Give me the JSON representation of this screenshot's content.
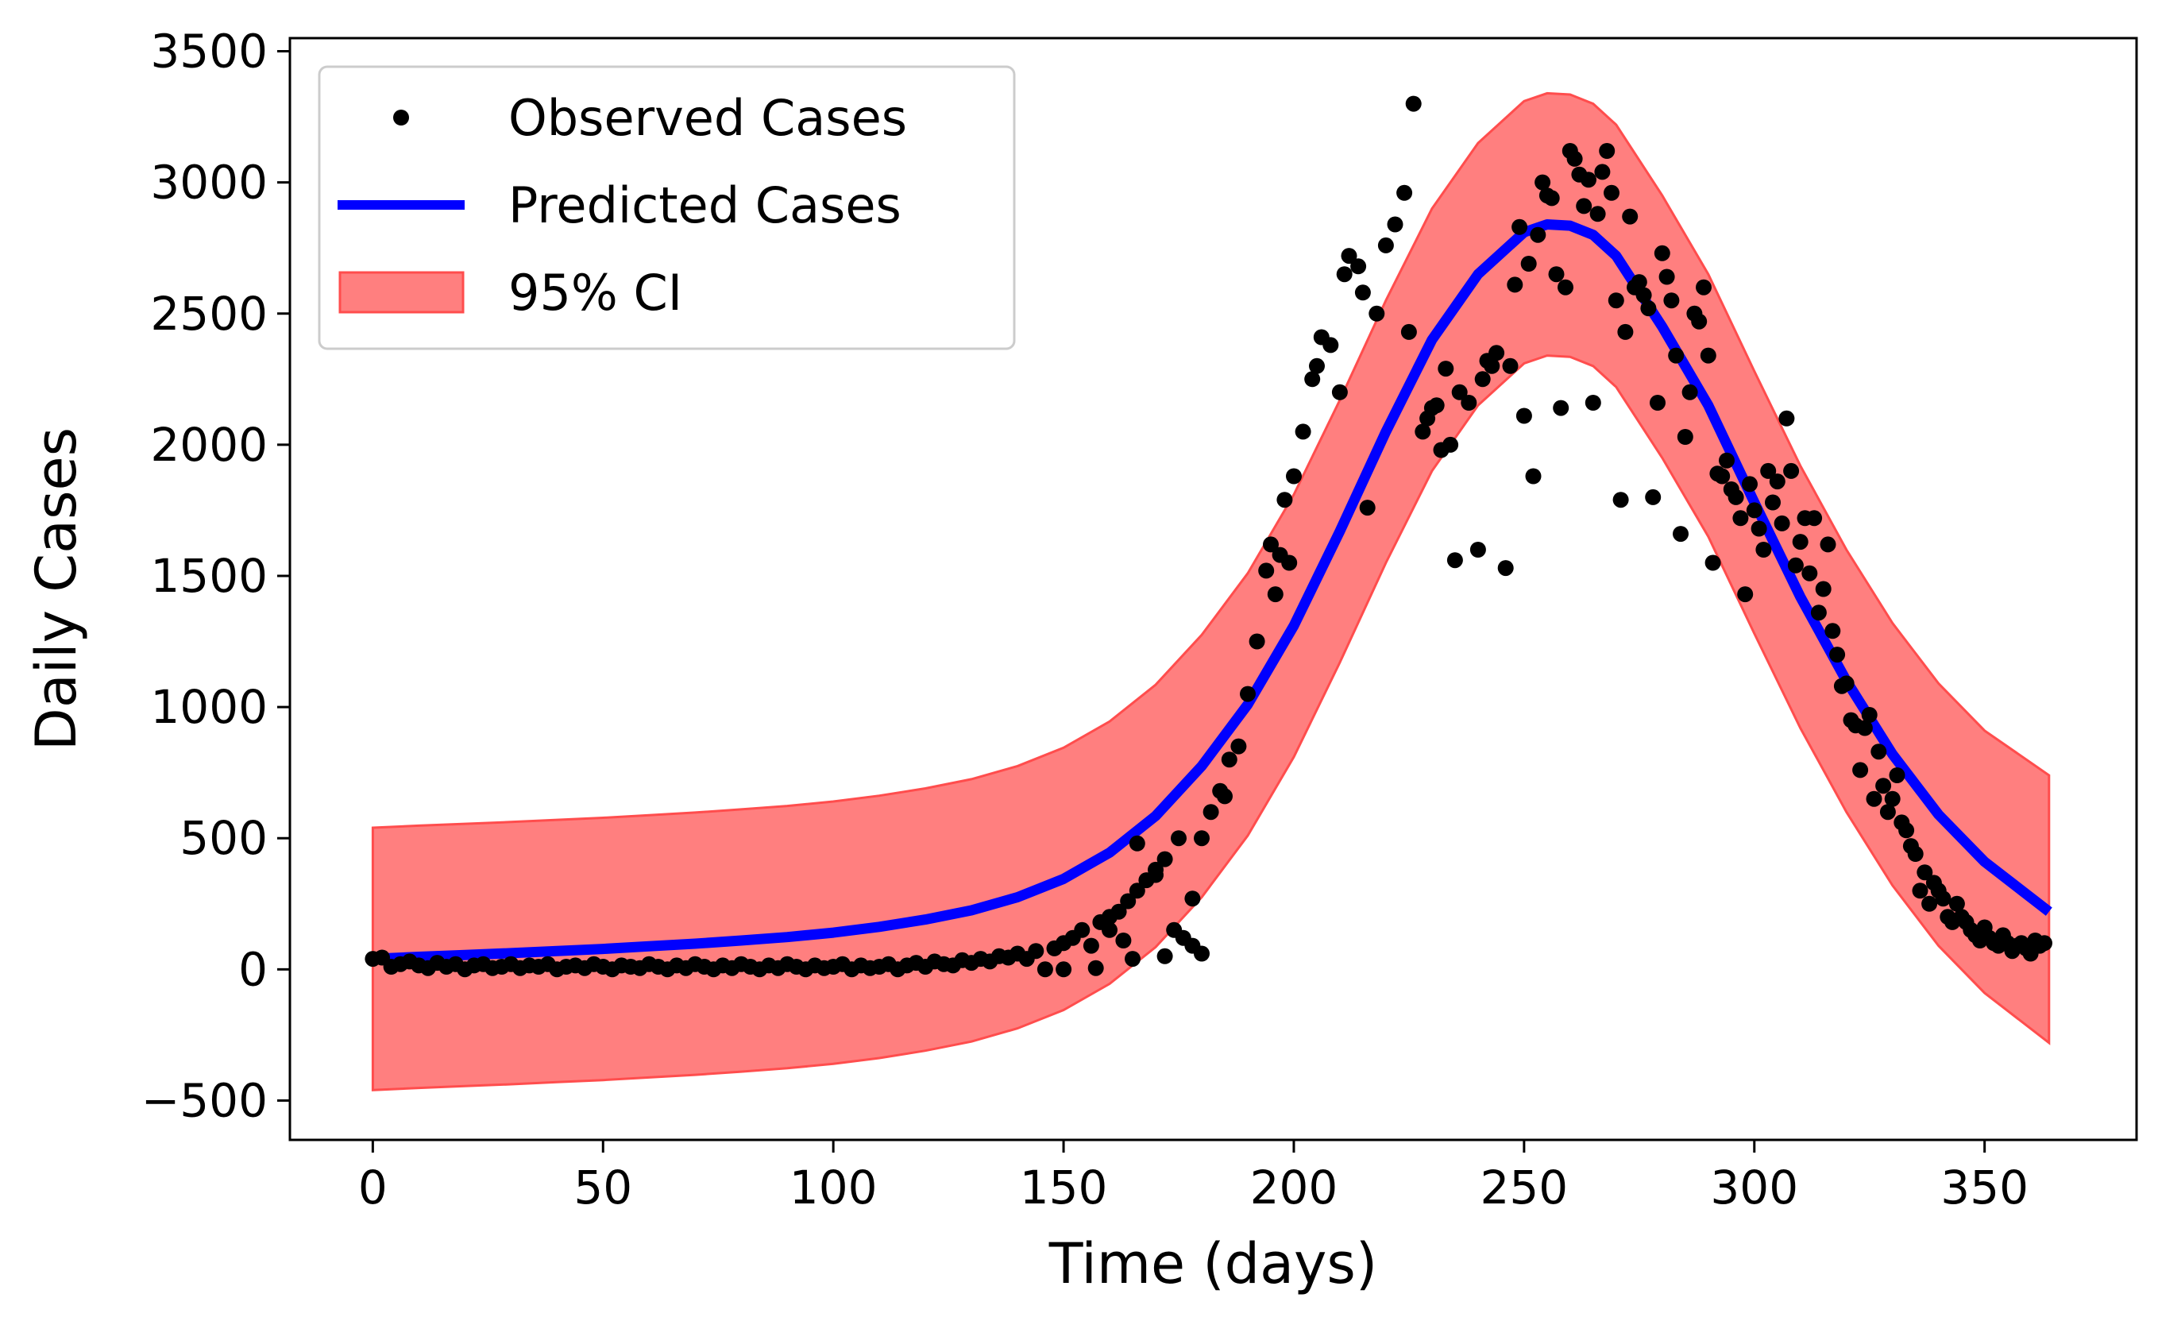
{
  "chart_data": {
    "type": "line",
    "title": "",
    "xlabel": "Time (days)",
    "ylabel": "Daily Cases",
    "xlim": [
      -18,
      383
    ],
    "ylim": [
      -650,
      3550
    ],
    "x_ticks": [
      0,
      50,
      100,
      150,
      200,
      250,
      300,
      350
    ],
    "x_tick_labels": [
      "0",
      "50",
      "100",
      "150",
      "200",
      "250",
      "300",
      "350"
    ],
    "y_ticks": [
      -500,
      0,
      500,
      1000,
      1500,
      2000,
      2500,
      3000,
      3500
    ],
    "y_tick_labels": [
      "−500",
      "0",
      "500",
      "1000",
      "1500",
      "2000",
      "2500",
      "3000",
      "3500"
    ],
    "grid": false,
    "legend": {
      "position": "top-left",
      "entries": [
        "Observed Cases",
        "Predicted Cases",
        "95% CI"
      ]
    },
    "colors": {
      "observed": "#000000",
      "predicted": "#0000ff",
      "ci_fill": "#ff7f7f",
      "ci_edge": "#ff4d4d"
    },
    "series": [
      {
        "name": "Predicted Cases",
        "kind": "line",
        "x": [
          0,
          10,
          20,
          30,
          40,
          50,
          60,
          70,
          80,
          90,
          100,
          110,
          120,
          130,
          140,
          150,
          160,
          170,
          180,
          190,
          200,
          210,
          220,
          230,
          240,
          250,
          255,
          260,
          265,
          270,
          280,
          290,
          300,
          310,
          320,
          330,
          340,
          350,
          364
        ],
        "y": [
          40,
          48,
          55,
          62,
          70,
          78,
          88,
          98,
          110,
          123,
          140,
          162,
          190,
          225,
          275,
          345,
          445,
          585,
          775,
          1010,
          1310,
          1670,
          2050,
          2400,
          2650,
          2810,
          2840,
          2835,
          2800,
          2720,
          2450,
          2150,
          1780,
          1420,
          1100,
          820,
          590,
          410,
          220
        ]
      },
      {
        "name": "95% CI",
        "kind": "band",
        "x": [
          0,
          10,
          20,
          30,
          40,
          50,
          60,
          70,
          80,
          90,
          100,
          110,
          120,
          130,
          140,
          150,
          160,
          170,
          180,
          190,
          200,
          210,
          220,
          230,
          240,
          250,
          255,
          260,
          265,
          270,
          280,
          290,
          300,
          310,
          320,
          330,
          340,
          350,
          364
        ],
        "lower": [
          -460,
          -452,
          -445,
          -438,
          -430,
          -422,
          -412,
          -402,
          -390,
          -377,
          -360,
          -338,
          -310,
          -275,
          -225,
          -155,
          -55,
          85,
          275,
          510,
          810,
          1170,
          1550,
          1900,
          2150,
          2310,
          2340,
          2335,
          2300,
          2220,
          1950,
          1650,
          1280,
          920,
          600,
          320,
          90,
          -90,
          -280
        ],
        "upper": [
          540,
          548,
          555,
          562,
          570,
          578,
          588,
          598,
          610,
          623,
          640,
          662,
          690,
          725,
          775,
          845,
          945,
          1085,
          1275,
          1510,
          1810,
          2170,
          2550,
          2900,
          3150,
          3310,
          3340,
          3335,
          3300,
          3220,
          2950,
          2650,
          2280,
          1920,
          1600,
          1320,
          1090,
          910,
          740
        ]
      },
      {
        "name": "Observed Cases",
        "kind": "scatter",
        "points": [
          [
            0,
            40
          ],
          [
            2,
            45
          ],
          [
            4,
            10
          ],
          [
            6,
            20
          ],
          [
            8,
            30
          ],
          [
            10,
            15
          ],
          [
            12,
            5
          ],
          [
            14,
            25
          ],
          [
            16,
            10
          ],
          [
            18,
            20
          ],
          [
            20,
            0
          ],
          [
            22,
            15
          ],
          [
            24,
            20
          ],
          [
            26,
            5
          ],
          [
            28,
            10
          ],
          [
            30,
            20
          ],
          [
            32,
            5
          ],
          [
            34,
            15
          ],
          [
            36,
            10
          ],
          [
            38,
            20
          ],
          [
            40,
            0
          ],
          [
            42,
            10
          ],
          [
            44,
            15
          ],
          [
            46,
            5
          ],
          [
            48,
            20
          ],
          [
            50,
            10
          ],
          [
            52,
            0
          ],
          [
            54,
            15
          ],
          [
            56,
            10
          ],
          [
            58,
            5
          ],
          [
            60,
            20
          ],
          [
            62,
            10
          ],
          [
            64,
            0
          ],
          [
            66,
            15
          ],
          [
            68,
            5
          ],
          [
            70,
            20
          ],
          [
            72,
            10
          ],
          [
            74,
            0
          ],
          [
            76,
            15
          ],
          [
            78,
            5
          ],
          [
            80,
            20
          ],
          [
            82,
            10
          ],
          [
            84,
            0
          ],
          [
            86,
            15
          ],
          [
            88,
            5
          ],
          [
            90,
            20
          ],
          [
            92,
            10
          ],
          [
            94,
            0
          ],
          [
            96,
            15
          ],
          [
            98,
            5
          ],
          [
            100,
            10
          ],
          [
            102,
            20
          ],
          [
            104,
            0
          ],
          [
            106,
            15
          ],
          [
            108,
            5
          ],
          [
            110,
            10
          ],
          [
            112,
            20
          ],
          [
            114,
            0
          ],
          [
            116,
            15
          ],
          [
            118,
            25
          ],
          [
            120,
            10
          ],
          [
            122,
            30
          ],
          [
            124,
            20
          ],
          [
            126,
            15
          ],
          [
            128,
            35
          ],
          [
            130,
            25
          ],
          [
            132,
            40
          ],
          [
            134,
            30
          ],
          [
            136,
            50
          ],
          [
            138,
            45
          ],
          [
            140,
            60
          ],
          [
            142,
            40
          ],
          [
            144,
            70
          ],
          [
            146,
            0
          ],
          [
            148,
            80
          ],
          [
            150,
            100
          ],
          [
            152,
            120
          ],
          [
            154,
            150
          ],
          [
            156,
            90
          ],
          [
            158,
            180
          ],
          [
            160,
            200
          ],
          [
            162,
            220
          ],
          [
            164,
            260
          ],
          [
            166,
            300
          ],
          [
            168,
            340
          ],
          [
            170,
            380
          ],
          [
            172,
            420
          ],
          [
            174,
            150
          ],
          [
            176,
            120
          ],
          [
            178,
            90
          ],
          [
            150,
            0
          ],
          [
            157,
            5
          ],
          [
            165,
            40
          ],
          [
            172,
            50
          ],
          [
            180,
            60
          ],
          [
            160,
            150
          ],
          [
            163,
            110
          ],
          [
            166,
            480
          ],
          [
            170,
            360
          ],
          [
            175,
            500
          ],
          [
            178,
            270
          ],
          [
            180,
            500
          ],
          [
            182,
            600
          ],
          [
            184,
            680
          ],
          [
            185,
            660
          ],
          [
            186,
            800
          ],
          [
            188,
            850
          ],
          [
            190,
            1050
          ],
          [
            192,
            1250
          ],
          [
            194,
            1520
          ],
          [
            195,
            1620
          ],
          [
            196,
            1430
          ],
          [
            197,
            1580
          ],
          [
            198,
            1790
          ],
          [
            199,
            1550
          ],
          [
            200,
            1880
          ],
          [
            202,
            2050
          ],
          [
            204,
            2250
          ],
          [
            205,
            2300
          ],
          [
            206,
            2410
          ],
          [
            208,
            2380
          ],
          [
            210,
            2200
          ],
          [
            211,
            2650
          ],
          [
            212,
            2720
          ],
          [
            214,
            2680
          ],
          [
            215,
            2580
          ],
          [
            216,
            1760
          ],
          [
            218,
            2500
          ],
          [
            220,
            2760
          ],
          [
            222,
            2840
          ],
          [
            224,
            2960
          ],
          [
            225,
            2430
          ],
          [
            226,
            3300
          ],
          [
            228,
            2050
          ],
          [
            229,
            2100
          ],
          [
            230,
            2140
          ],
          [
            231,
            2150
          ],
          [
            232,
            1980
          ],
          [
            233,
            2290
          ],
          [
            234,
            2000
          ],
          [
            235,
            1560
          ],
          [
            236,
            2200
          ],
          [
            238,
            2160
          ],
          [
            240,
            1600
          ],
          [
            241,
            2250
          ],
          [
            242,
            2320
          ],
          [
            243,
            2300
          ],
          [
            244,
            2350
          ],
          [
            246,
            1530
          ],
          [
            247,
            2300
          ],
          [
            248,
            2610
          ],
          [
            249,
            2830
          ],
          [
            250,
            2110
          ],
          [
            251,
            2690
          ],
          [
            252,
            1880
          ],
          [
            253,
            2800
          ],
          [
            254,
            3000
          ],
          [
            255,
            2950
          ],
          [
            256,
            2940
          ],
          [
            257,
            2650
          ],
          [
            258,
            2140
          ],
          [
            259,
            2600
          ],
          [
            260,
            3120
          ],
          [
            261,
            3090
          ],
          [
            262,
            3030
          ],
          [
            263,
            2910
          ],
          [
            264,
            3010
          ],
          [
            265,
            2160
          ],
          [
            266,
            2880
          ],
          [
            267,
            3040
          ],
          [
            268,
            3120
          ],
          [
            269,
            2960
          ],
          [
            270,
            2550
          ],
          [
            271,
            1790
          ],
          [
            272,
            2430
          ],
          [
            273,
            2870
          ],
          [
            274,
            2600
          ],
          [
            275,
            2620
          ],
          [
            276,
            2570
          ],
          [
            277,
            2520
          ],
          [
            278,
            1800
          ],
          [
            279,
            2160
          ],
          [
            280,
            2730
          ],
          [
            281,
            2640
          ],
          [
            282,
            2550
          ],
          [
            283,
            2340
          ],
          [
            284,
            1660
          ],
          [
            285,
            2030
          ],
          [
            286,
            2200
          ],
          [
            287,
            2500
          ],
          [
            288,
            2470
          ],
          [
            289,
            2600
          ],
          [
            290,
            2340
          ],
          [
            291,
            1550
          ],
          [
            292,
            1890
          ],
          [
            293,
            1880
          ],
          [
            294,
            1940
          ],
          [
            295,
            1830
          ],
          [
            296,
            1800
          ],
          [
            297,
            1720
          ],
          [
            298,
            1430
          ],
          [
            299,
            1850
          ],
          [
            300,
            1750
          ],
          [
            301,
            1680
          ],
          [
            302,
            1600
          ],
          [
            303,
            1900
          ],
          [
            304,
            1780
          ],
          [
            305,
            1860
          ],
          [
            306,
            1700
          ],
          [
            307,
            2100
          ],
          [
            308,
            1900
          ],
          [
            309,
            1540
          ],
          [
            310,
            1630
          ],
          [
            311,
            1720
          ],
          [
            312,
            1510
          ],
          [
            313,
            1720
          ],
          [
            314,
            1360
          ],
          [
            315,
            1450
          ],
          [
            316,
            1620
          ],
          [
            317,
            1290
          ],
          [
            318,
            1200
          ],
          [
            319,
            1080
          ],
          [
            320,
            1090
          ],
          [
            321,
            950
          ],
          [
            322,
            930
          ],
          [
            323,
            760
          ],
          [
            324,
            920
          ],
          [
            325,
            970
          ],
          [
            326,
            650
          ],
          [
            327,
            830
          ],
          [
            328,
            700
          ],
          [
            329,
            600
          ],
          [
            330,
            650
          ],
          [
            331,
            740
          ],
          [
            332,
            560
          ],
          [
            333,
            530
          ],
          [
            334,
            470
          ],
          [
            335,
            440
          ],
          [
            336,
            300
          ],
          [
            337,
            370
          ],
          [
            338,
            250
          ],
          [
            339,
            330
          ],
          [
            340,
            300
          ],
          [
            341,
            270
          ],
          [
            342,
            200
          ],
          [
            343,
            180
          ],
          [
            344,
            250
          ],
          [
            345,
            200
          ],
          [
            346,
            180
          ],
          [
            347,
            150
          ],
          [
            348,
            130
          ],
          [
            349,
            110
          ],
          [
            350,
            160
          ],
          [
            351,
            120
          ],
          [
            352,
            100
          ],
          [
            353,
            90
          ],
          [
            354,
            130
          ],
          [
            355,
            100
          ],
          [
            356,
            70
          ],
          [
            357,
            90
          ],
          [
            358,
            100
          ],
          [
            359,
            80
          ],
          [
            360,
            60
          ],
          [
            361,
            110
          ],
          [
            362,
            90
          ],
          [
            363,
            100
          ]
        ]
      }
    ]
  }
}
